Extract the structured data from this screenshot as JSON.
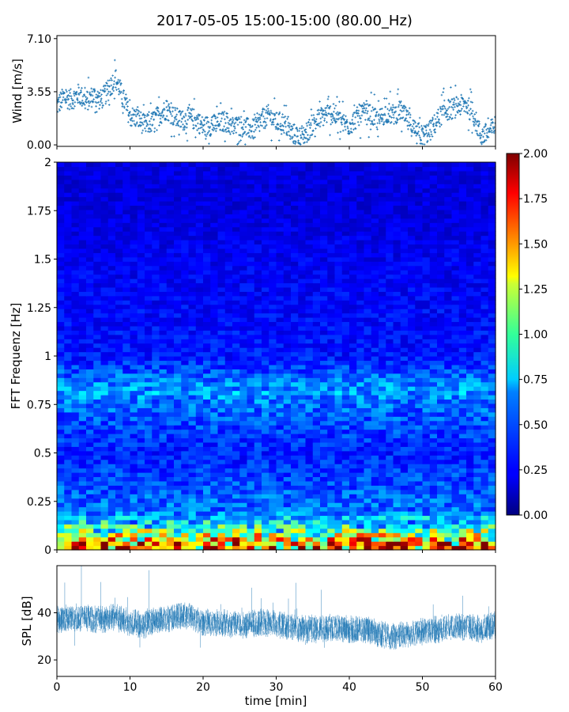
{
  "figure": {
    "title": "2017-05-05 15:00-15:00 (80.00_Hz)"
  },
  "chart_data": [
    {
      "type": "scatter",
      "panel": "wind",
      "ylabel": "Wind [m/s]",
      "xlim": [
        0,
        60
      ],
      "ylim": [
        -0.1,
        7.3
      ],
      "yticks": [
        0.0,
        3.55,
        7.1
      ],
      "ytick_labels": [
        "0.00",
        "3.55",
        "7.10"
      ],
      "color": "#1f77b4",
      "marker": "+",
      "x": [
        0,
        1,
        2,
        3,
        4,
        5,
        6,
        7,
        8,
        9,
        10,
        11,
        12,
        13,
        14,
        15,
        16,
        17,
        18,
        19,
        20,
        21,
        22,
        23,
        24,
        25,
        26,
        27,
        28,
        29,
        30,
        31,
        32,
        33,
        34,
        35,
        36,
        37,
        38,
        39,
        40,
        41,
        42,
        43,
        44,
        45,
        46,
        47,
        48,
        49,
        50,
        51,
        52,
        53,
        54,
        55,
        56,
        57,
        58,
        59,
        60
      ],
      "y": [
        2.6,
        3.2,
        3.0,
        3.4,
        2.9,
        3.3,
        3.0,
        3.6,
        4.5,
        3.2,
        1.9,
        1.8,
        1.3,
        1.5,
        2.0,
        2.4,
        1.9,
        1.6,
        1.8,
        1.7,
        1.2,
        1.3,
        1.4,
        1.6,
        1.2,
        1.3,
        1.1,
        1.0,
        1.6,
        2.0,
        1.5,
        1.5,
        0.8,
        0.6,
        0.7,
        1.4,
        1.8,
        2.1,
        2.0,
        1.5,
        1.3,
        1.8,
        2.1,
        2.0,
        1.6,
        2.2,
        2.0,
        2.3,
        1.6,
        1.0,
        0.6,
        0.9,
        1.6,
        2.3,
        2.4,
        2.6,
        2.7,
        2.0,
        0.6,
        0.8,
        1.3
      ]
    },
    {
      "type": "heatmap",
      "panel": "spectrogram",
      "ylabel": "FFT Frequenz [Hz]",
      "xlim": [
        0,
        60
      ],
      "ylim": [
        0,
        2
      ],
      "yticks": [
        0,
        0.25,
        0.5,
        0.75,
        1,
        1.25,
        1.5,
        1.75,
        2
      ],
      "ytick_labels": [
        "0",
        "0.25",
        "0.5",
        "0.75",
        "1",
        "1.25",
        "1.5",
        "1.75",
        "2"
      ],
      "colormap": "jet",
      "colorbar": {
        "range": [
          0,
          2
        ],
        "ticks": [
          "0.00",
          "0.25",
          "0.50",
          "0.75",
          "1.00",
          "1.25",
          "1.50",
          "1.75",
          "2.00"
        ]
      },
      "freq_bins": [
        0.02,
        0.07,
        0.12,
        0.2,
        0.25,
        0.5,
        0.75,
        0.82,
        1.0,
        1.25,
        1.5,
        1.75,
        1.95
      ],
      "typical_level": [
        1.85,
        1.25,
        0.85,
        0.45,
        0.45,
        0.3,
        0.45,
        0.55,
        0.28,
        0.25,
        0.22,
        0.18,
        0.18
      ]
    },
    {
      "type": "line",
      "panel": "spl",
      "ylabel": "SPL [dB]",
      "xlabel": "time [min]",
      "xlim": [
        0,
        60
      ],
      "ylim": [
        13,
        60
      ],
      "xticks": [
        0,
        10,
        20,
        30,
        40,
        50,
        60
      ],
      "xtick_labels": [
        "0",
        "10",
        "20",
        "30",
        "40",
        "50",
        "60"
      ],
      "yticks": [
        20,
        40
      ],
      "ytick_labels": [
        "20",
        "40"
      ],
      "color": "#1f77b4",
      "x": [
        0,
        2,
        4,
        6,
        8,
        10,
        12,
        14,
        16,
        18,
        20,
        22,
        24,
        26,
        28,
        30,
        32,
        34,
        36,
        38,
        40,
        42,
        44,
        46,
        48,
        50,
        52,
        54,
        56,
        58,
        60
      ],
      "y": [
        37,
        38,
        38,
        37,
        38,
        36,
        35,
        37,
        38,
        39,
        36,
        36,
        35,
        35,
        36,
        35,
        34,
        33,
        33,
        34,
        33,
        33,
        31,
        30,
        31,
        32,
        33,
        34,
        34,
        33,
        35
      ]
    }
  ]
}
